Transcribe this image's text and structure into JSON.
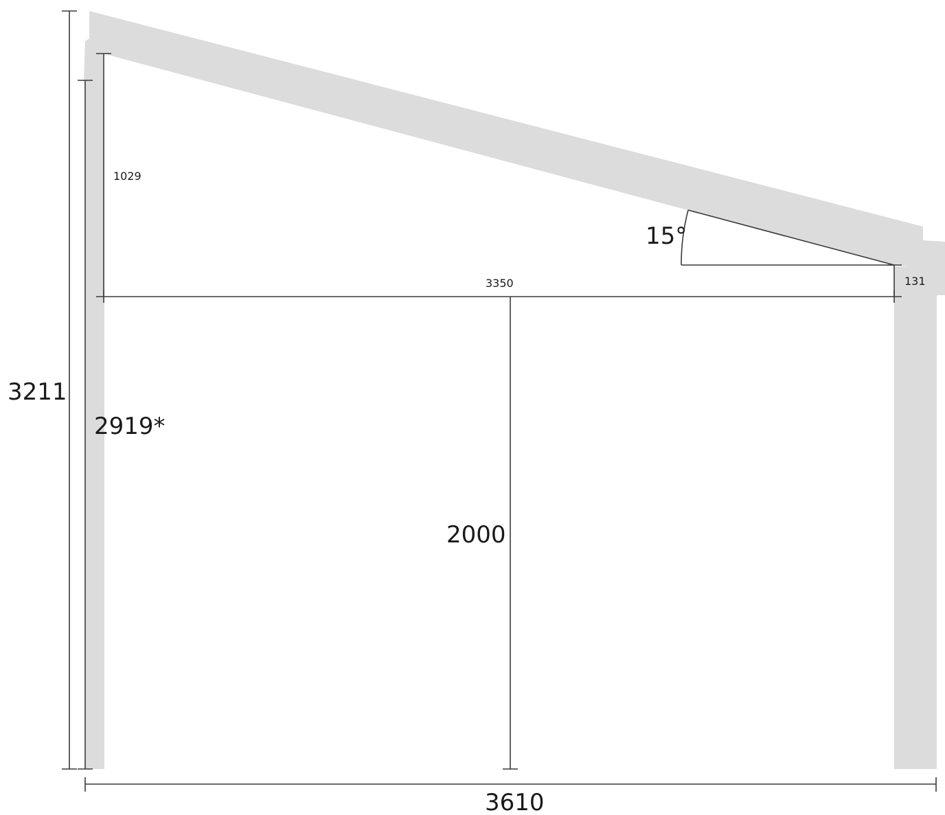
{
  "diagram": {
    "labels": {
      "overall_height": "3211",
      "left_post_height": "2919*",
      "rise_left": "1029",
      "span": "3350",
      "rise_right": "131",
      "angle": "15°",
      "center_height": "2000",
      "overall_width": "3610"
    },
    "colors": {
      "structure_fill": "#dcdcdc",
      "dimension_line": "#3a3a3a",
      "label_text": "#1a1a1a"
    }
  }
}
